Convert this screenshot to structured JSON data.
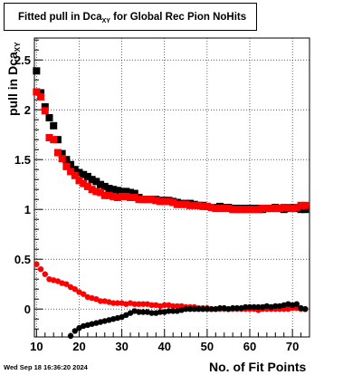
{
  "title": {
    "main": "Fitted pull in Dca",
    "sub": "XY",
    "rest": " for Global Rec Pion NoHits"
  },
  "footer": {
    "timestamp": "Wed Sep 18 16:36:20 2024"
  },
  "chart_data": {
    "type": "scatter",
    "xlabel": "No. of Fit Points",
    "ylabel_main": "pull in Dca",
    "ylabel_sub": "XY",
    "xlim": [
      9.5,
      74
    ],
    "ylim": [
      -0.28,
      2.72
    ],
    "x_ticks": [
      10,
      20,
      30,
      40,
      50,
      60,
      70
    ],
    "y_ticks": [
      0,
      0.5,
      1,
      1.5,
      2,
      2.5
    ],
    "y_tick_labels": [
      "0",
      "0.5",
      "1",
      "1.5",
      "2",
      "2.5"
    ],
    "grid": true,
    "series": [
      {
        "color": "#000000",
        "marker": "square",
        "x": [
          10,
          11,
          12,
          13,
          14,
          15,
          16,
          17,
          18,
          19,
          20,
          21,
          22,
          23,
          24,
          25,
          26,
          27,
          28,
          29,
          30,
          31,
          32,
          33,
          34,
          35,
          36,
          37,
          38,
          39,
          40,
          41,
          42,
          43,
          44,
          45,
          46,
          47,
          48,
          49,
          50,
          51,
          52,
          53,
          54,
          55,
          56,
          57,
          58,
          59,
          60,
          61,
          62,
          63,
          64,
          65,
          66,
          67,
          68,
          69,
          70,
          71,
          72,
          73
        ],
        "y": [
          2.39,
          2.17,
          2.03,
          1.92,
          1.84,
          1.7,
          1.56,
          1.5,
          1.45,
          1.4,
          1.37,
          1.35,
          1.33,
          1.3,
          1.28,
          1.25,
          1.23,
          1.21,
          1.2,
          1.19,
          1.18,
          1.18,
          1.17,
          1.16,
          1.12,
          1.1,
          1.1,
          1.1,
          1.1,
          1.09,
          1.09,
          1.09,
          1.08,
          1.07,
          1.06,
          1.06,
          1.06,
          1.05,
          1.04,
          1.04,
          1.03,
          1.02,
          1.02,
          1.03,
          1.02,
          1.02,
          1.01,
          1.01,
          1.01,
          1.01,
          1.01,
          1.01,
          1.01,
          1.0,
          1.01,
          1.01,
          1.02,
          1.01,
          1.0,
          1.01,
          1.02,
          1.01,
          1.0,
          1.0
        ]
      },
      {
        "color": "#ff0000",
        "marker": "square",
        "x": [
          10,
          11,
          12,
          13,
          14,
          15,
          16,
          17,
          18,
          19,
          20,
          21,
          22,
          23,
          24,
          25,
          26,
          27,
          28,
          29,
          30,
          31,
          32,
          33,
          34,
          35,
          36,
          37,
          38,
          39,
          40,
          41,
          42,
          43,
          44,
          45,
          46,
          47,
          48,
          49,
          50,
          51,
          52,
          53,
          54,
          55,
          56,
          57,
          58,
          59,
          60,
          61,
          62,
          63,
          64,
          65,
          66,
          67,
          68,
          69,
          70,
          71,
          72,
          73
        ],
        "y": [
          2.18,
          2.13,
          1.99,
          1.72,
          1.7,
          1.57,
          1.51,
          1.43,
          1.38,
          1.34,
          1.29,
          1.26,
          1.23,
          1.2,
          1.18,
          1.17,
          1.14,
          1.14,
          1.13,
          1.12,
          1.13,
          1.13,
          1.12,
          1.12,
          1.1,
          1.1,
          1.1,
          1.1,
          1.09,
          1.08,
          1.08,
          1.08,
          1.07,
          1.05,
          1.05,
          1.05,
          1.04,
          1.04,
          1.04,
          1.03,
          1.03,
          1.02,
          1.01,
          1.01,
          1.01,
          1.01,
          1.0,
          1.0,
          1.0,
          1.0,
          1.0,
          1.0,
          1.0,
          1.01,
          1.01,
          1.01,
          1.01,
          1.01,
          1.02,
          1.02,
          1.01,
          1.02,
          1.04,
          1.04
        ]
      },
      {
        "color": "#ff0000",
        "marker": "circle",
        "x": [
          10,
          11,
          12,
          13,
          14,
          15,
          16,
          17,
          18,
          19,
          20,
          21,
          22,
          23,
          24,
          25,
          26,
          27,
          28,
          29,
          30,
          31,
          32,
          33,
          34,
          35,
          36,
          37,
          38,
          39,
          40,
          41,
          42,
          43,
          44,
          45,
          46,
          47,
          48,
          49,
          50,
          51,
          52,
          53,
          54,
          55,
          56,
          57,
          58,
          59,
          60,
          61,
          62,
          63,
          64,
          65,
          66,
          67,
          68,
          69,
          70,
          71,
          72,
          73
        ],
        "y": [
          0.45,
          0.4,
          0.35,
          0.3,
          0.29,
          0.28,
          0.26,
          0.25,
          0.22,
          0.2,
          0.17,
          0.15,
          0.12,
          0.11,
          0.1,
          0.08,
          0.08,
          0.07,
          0.06,
          0.06,
          0.06,
          0.05,
          0.06,
          0.05,
          0.05,
          0.05,
          0.05,
          0.04,
          0.04,
          0.03,
          0.04,
          0.04,
          0.03,
          0.03,
          0.03,
          0.02,
          0.02,
          0.02,
          0.01,
          0.01,
          0.01,
          0.0,
          0.0,
          0.0,
          0.0,
          0.0,
          0.0,
          0.0,
          0.0,
          0.0,
          0.0,
          0.0,
          -0.01,
          0.0,
          0.0,
          0.0,
          0.0,
          0.0,
          0.0,
          0.0,
          0.01,
          0.01,
          0.0,
          0.0
        ]
      },
      {
        "color": "#000000",
        "marker": "circle",
        "x": [
          18,
          19,
          20,
          21,
          22,
          23,
          24,
          25,
          26,
          27,
          28,
          29,
          30,
          31,
          32,
          33,
          34,
          35,
          36,
          37,
          38,
          39,
          40,
          41,
          42,
          43,
          44,
          45,
          46,
          47,
          48,
          49,
          50,
          51,
          52,
          53,
          54,
          55,
          56,
          57,
          58,
          59,
          60,
          61,
          62,
          63,
          64,
          65,
          66,
          67,
          68,
          69,
          70,
          71,
          72,
          73
        ],
        "y": [
          -0.27,
          -0.22,
          -0.19,
          -0.17,
          -0.16,
          -0.15,
          -0.14,
          -0.13,
          -0.12,
          -0.11,
          -0.1,
          -0.09,
          -0.08,
          -0.06,
          -0.04,
          -0.02,
          -0.03,
          -0.03,
          -0.03,
          -0.04,
          -0.04,
          -0.03,
          -0.03,
          -0.02,
          -0.02,
          -0.02,
          -0.01,
          0.0,
          0.0,
          0.0,
          0.0,
          0.0,
          0.0,
          0.0,
          0.0,
          0.01,
          0.01,
          0.0,
          0.01,
          0.01,
          0.01,
          0.02,
          0.02,
          0.02,
          0.02,
          0.02,
          0.03,
          0.02,
          0.03,
          0.03,
          0.04,
          0.05,
          0.04,
          0.05,
          0.01,
          0.0
        ]
      }
    ]
  }
}
